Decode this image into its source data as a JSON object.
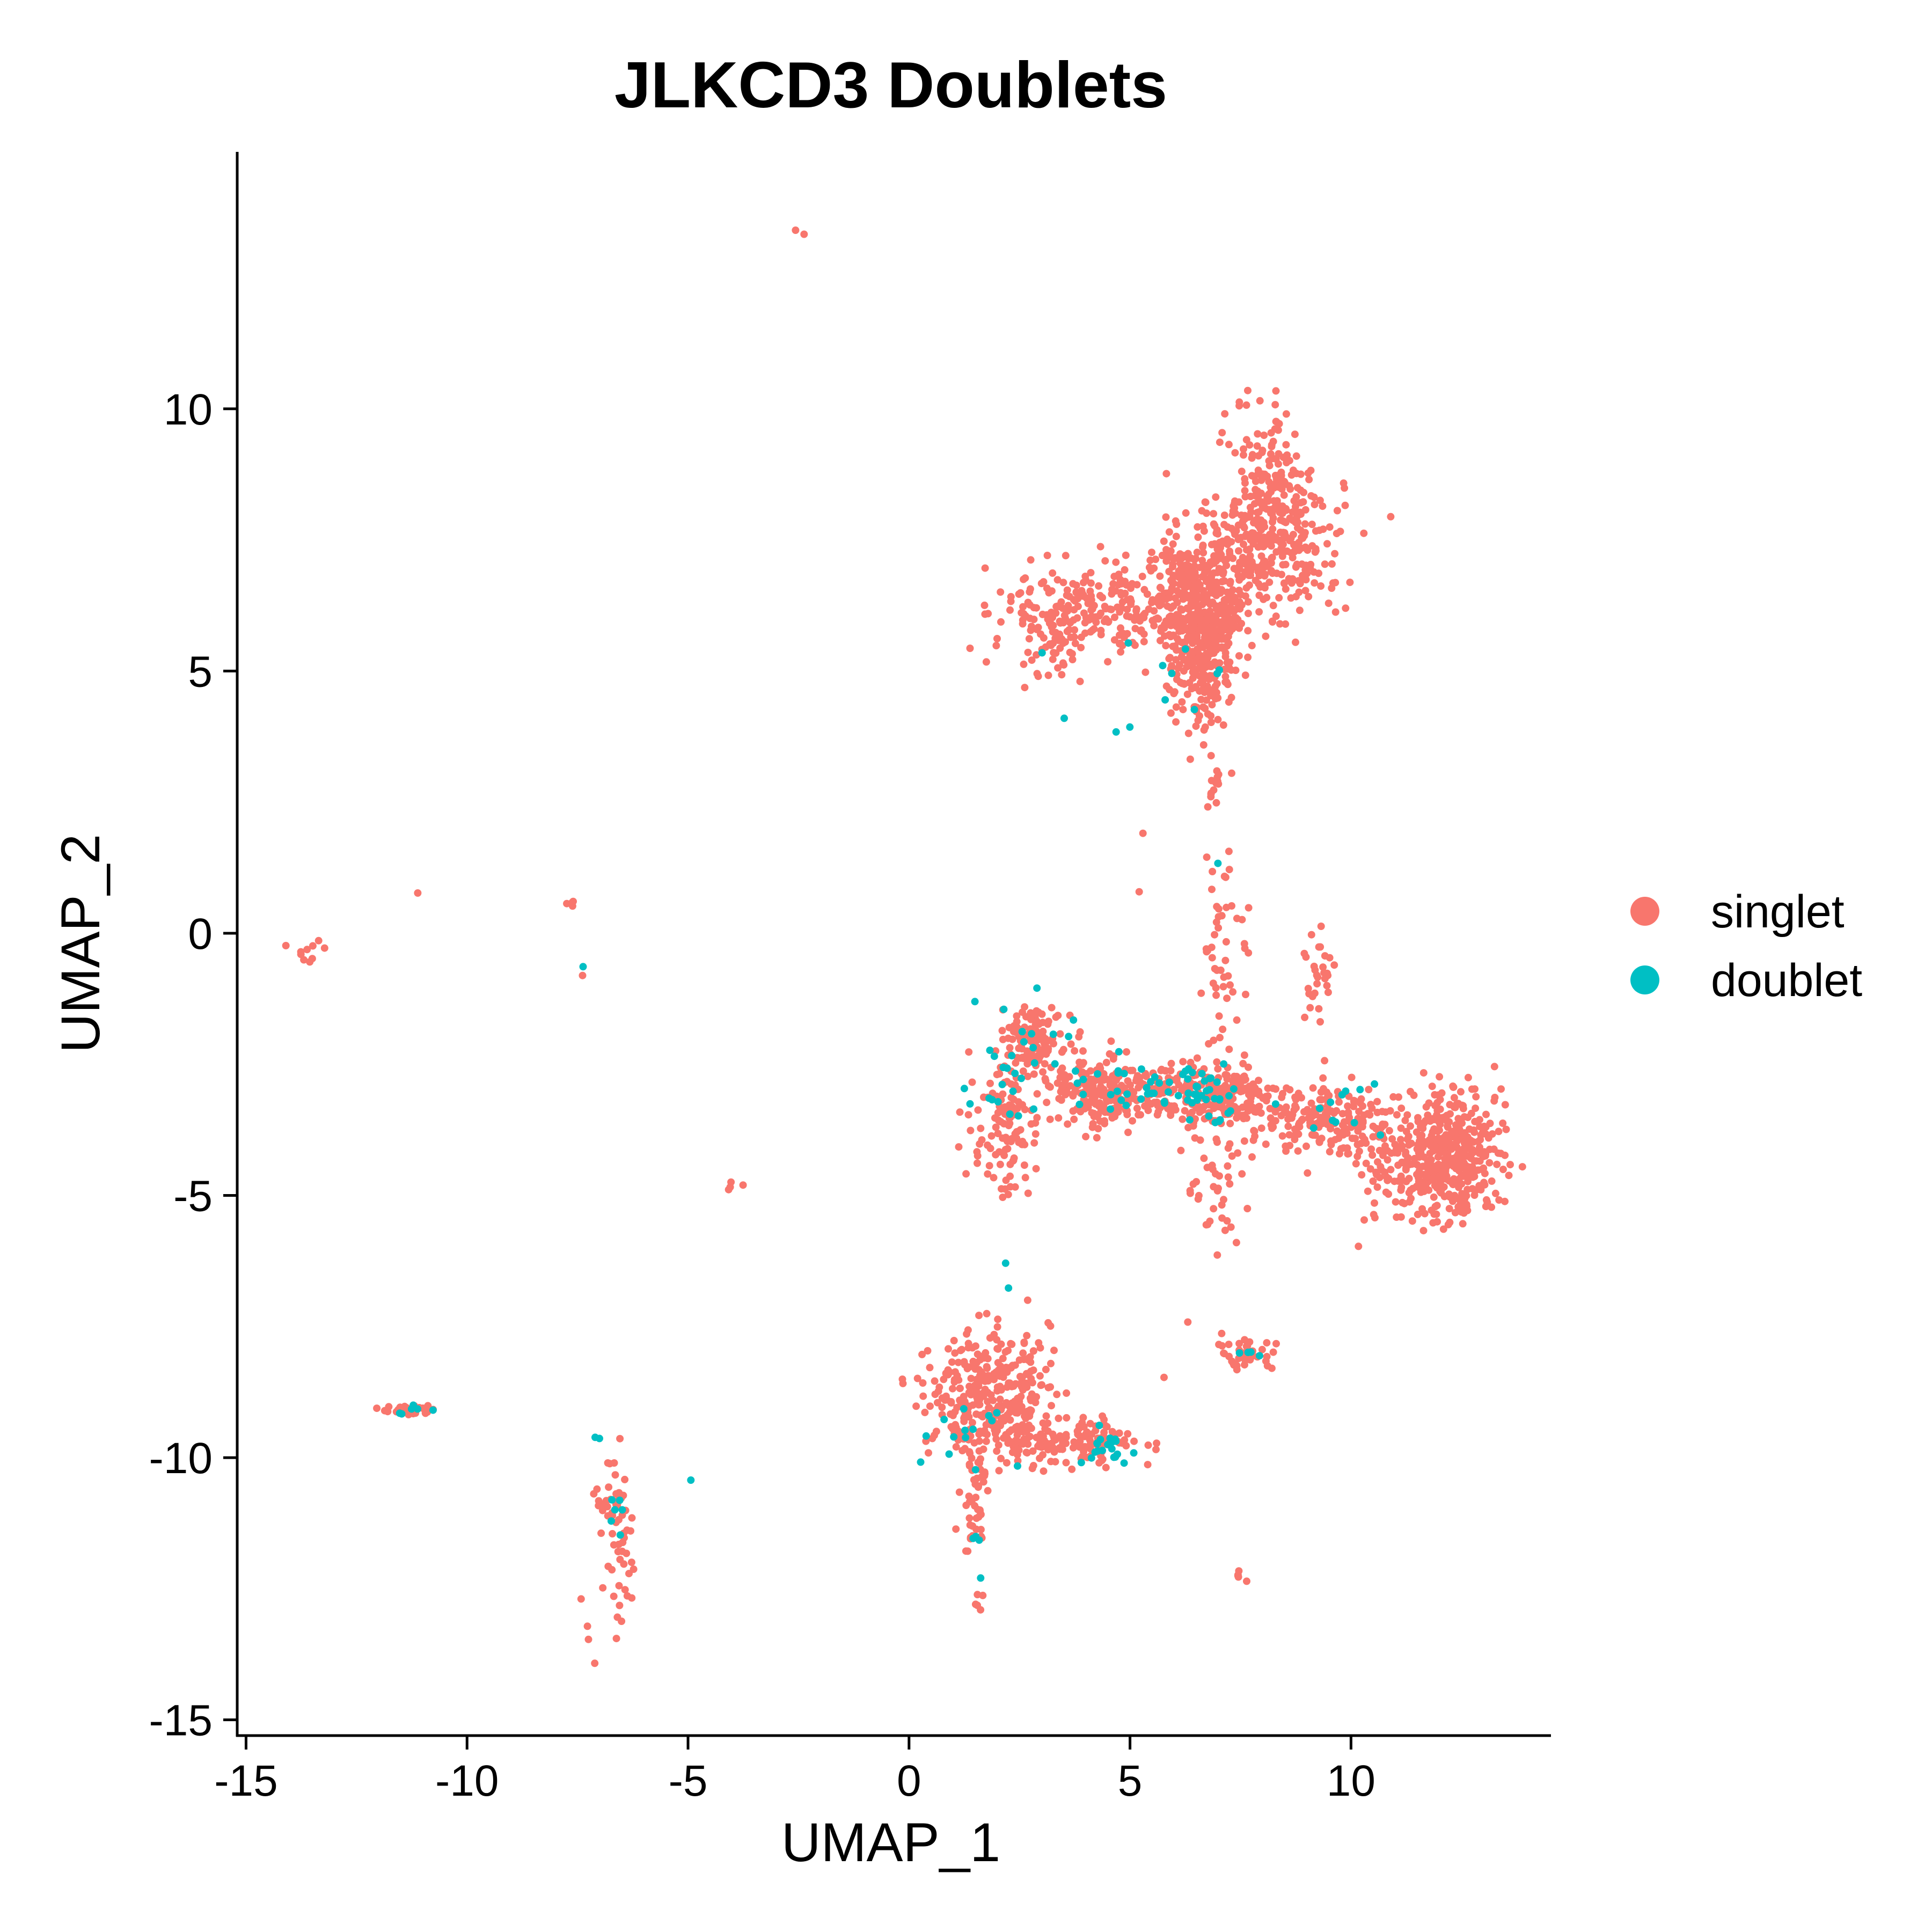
{
  "chart_data": {
    "type": "scatter",
    "title": "JLKCD3 Doublets",
    "xlabel": "UMAP_1",
    "ylabel": "UMAP_2",
    "xlim": [
      -15.2,
      14.5
    ],
    "ylim": [
      -15.3,
      14.9
    ],
    "xticks": [
      -15,
      -10,
      -5,
      0,
      5,
      10
    ],
    "xtick_labels": [
      "-15",
      "-10",
      "-5",
      "0",
      "5",
      "10"
    ],
    "yticks": [
      -15,
      -10,
      -5,
      0,
      5,
      10
    ],
    "ytick_labels": [
      "-15",
      "-10",
      "-5",
      "0",
      "5",
      "10"
    ],
    "grid": false,
    "legend_position": "right",
    "series": [
      {
        "name": "singlet",
        "color": "#F8766D",
        "clusters": [
          {
            "cx": 8.0,
            "cy": 7.4,
            "sx": 0.9,
            "sy": 0.7,
            "n": 380
          },
          {
            "cx": 8.3,
            "cy": 8.8,
            "sx": 0.45,
            "sy": 0.7,
            "n": 110
          },
          {
            "cx": 6.6,
            "cy": 6.2,
            "sx": 0.5,
            "sy": 0.6,
            "n": 320
          },
          {
            "cx": 6.7,
            "cy": 5.0,
            "sx": 0.35,
            "sy": 0.6,
            "n": 170
          },
          {
            "cx": 4.6,
            "cy": 6.2,
            "sx": 1.3,
            "sy": 0.45,
            "n": 260
          },
          {
            "cx": 3.3,
            "cy": 5.7,
            "sx": 0.4,
            "sy": 0.5,
            "n": 60
          },
          {
            "cx": 6.9,
            "cy": 2.7,
            "sx": 0.1,
            "sy": 0.25,
            "n": 12
          },
          {
            "cx": 7.1,
            "cy": -0.6,
            "sx": 0.3,
            "sy": 1.1,
            "n": 55
          },
          {
            "cx": 9.3,
            "cy": -0.9,
            "sx": 0.18,
            "sy": 0.5,
            "n": 30
          },
          {
            "cx": 2.8,
            "cy": -2.0,
            "sx": 0.35,
            "sy": 0.3,
            "n": 120
          },
          {
            "cx": 2.2,
            "cy": -3.8,
            "sx": 0.4,
            "sy": 0.6,
            "n": 110
          },
          {
            "cx": 4.2,
            "cy": -3.0,
            "sx": 0.6,
            "sy": 0.4,
            "n": 180
          },
          {
            "cx": 6.5,
            "cy": -3.1,
            "sx": 1.1,
            "sy": 0.3,
            "n": 260
          },
          {
            "cx": 9.5,
            "cy": -3.6,
            "sx": 1.0,
            "sy": 0.3,
            "n": 200
          },
          {
            "cx": 12.3,
            "cy": -4.2,
            "sx": 0.5,
            "sy": 0.6,
            "n": 420
          },
          {
            "cx": 11.0,
            "cy": -4.5,
            "sx": 0.5,
            "sy": 0.5,
            "n": 90
          },
          {
            "cx": 6.9,
            "cy": -4.6,
            "sx": 0.4,
            "sy": 0.6,
            "n": 40
          },
          {
            "cx": 1.8,
            "cy": -8.8,
            "sx": 0.7,
            "sy": 0.6,
            "n": 340
          },
          {
            "cx": 3.7,
            "cy": -9.7,
            "sx": 0.8,
            "sy": 0.2,
            "n": 140
          },
          {
            "cx": 1.5,
            "cy": -10.8,
            "sx": 0.15,
            "sy": 0.6,
            "n": 50
          },
          {
            "cx": 1.6,
            "cy": -12.8,
            "sx": 0.05,
            "sy": 0.2,
            "n": 5
          },
          {
            "cx": 7.6,
            "cy": -8.0,
            "sx": 0.4,
            "sy": 0.15,
            "n": 40
          },
          {
            "cx": 7.5,
            "cy": -12.2,
            "sx": 0.1,
            "sy": 0.1,
            "n": 5
          },
          {
            "cx": -11.2,
            "cy": -9.1,
            "sx": 0.3,
            "sy": 0.05,
            "n": 30
          },
          {
            "cx": -6.6,
            "cy": -11.2,
            "sx": 0.25,
            "sy": 0.6,
            "n": 60
          },
          {
            "cx": -7.3,
            "cy": -13.3,
            "sx": 0.15,
            "sy": 0.3,
            "n": 4
          },
          {
            "cx": -6.6,
            "cy": -13.0,
            "sx": 0.1,
            "sy": 0.5,
            "n": 4
          },
          {
            "cx": -13.6,
            "cy": -0.4,
            "sx": 0.2,
            "sy": 0.12,
            "n": 10
          },
          {
            "cx": -7.6,
            "cy": 0.6,
            "sx": 0.1,
            "sy": 0.25,
            "n": 4
          },
          {
            "cx": -3.9,
            "cy": -4.8,
            "sx": 0.1,
            "sy": 0.1,
            "n": 4
          },
          {
            "cx": -2.2,
            "cy": 13.4,
            "sx": 0.2,
            "sy": 0.05,
            "n": 2
          },
          {
            "cx": -11.1,
            "cy": 0.8,
            "sx": 0.02,
            "sy": 0.02,
            "n": 1
          },
          {
            "cx": -7.4,
            "cy": -0.8,
            "sx": 0.02,
            "sy": 0.02,
            "n": 1
          },
          {
            "cx": 5.3,
            "cy": 1.9,
            "sx": 0.02,
            "sy": 0.02,
            "n": 1
          },
          {
            "cx": 5.2,
            "cy": 0.8,
            "sx": 0.02,
            "sy": 0.02,
            "n": 1
          },
          {
            "cx": 6.3,
            "cy": -7.4,
            "sx": 0.02,
            "sy": 0.02,
            "n": 1
          },
          {
            "cx": 5.8,
            "cy": -8.5,
            "sx": 0.02,
            "sy": 0.02,
            "n": 1
          }
        ]
      },
      {
        "name": "doublet",
        "color": "#00BFC4",
        "clusters": [
          {
            "cx": 2.4,
            "cy": -2.4,
            "sx": 0.6,
            "sy": 0.6,
            "n": 30
          },
          {
            "cx": 5.0,
            "cy": -2.9,
            "sx": 0.9,
            "sy": 0.25,
            "n": 35
          },
          {
            "cx": 6.7,
            "cy": -3.0,
            "sx": 0.4,
            "sy": 0.3,
            "n": 30
          },
          {
            "cx": 9.6,
            "cy": -3.4,
            "sx": 0.8,
            "sy": 0.3,
            "n": 12
          },
          {
            "cx": 4.6,
            "cy": -9.8,
            "sx": 0.4,
            "sy": 0.15,
            "n": 22
          },
          {
            "cx": 1.4,
            "cy": -9.6,
            "sx": 0.5,
            "sy": 0.4,
            "n": 14
          },
          {
            "cx": 5.8,
            "cy": 5.2,
            "sx": 0.9,
            "sy": 0.5,
            "n": 10
          },
          {
            "cx": 7.6,
            "cy": -8.0,
            "sx": 0.25,
            "sy": 0.05,
            "n": 4
          },
          {
            "cx": -11.3,
            "cy": -9.1,
            "sx": 0.2,
            "sy": 0.05,
            "n": 6
          },
          {
            "cx": -6.6,
            "cy": -11.0,
            "sx": 0.12,
            "sy": 0.3,
            "n": 6
          },
          {
            "cx": 1.5,
            "cy": -11.5,
            "sx": 0.05,
            "sy": 0.1,
            "n": 3
          },
          {
            "cx": -7.4,
            "cy": -0.65,
            "sx": 0.02,
            "sy": 0.02,
            "n": 1
          },
          {
            "cx": -7.1,
            "cy": -9.6,
            "sx": 0.2,
            "sy": 0.05,
            "n": 2
          },
          {
            "cx": -4.9,
            "cy": -10.4,
            "sx": 0.02,
            "sy": 0.02,
            "n": 1
          },
          {
            "cx": 2.2,
            "cy": -6.4,
            "sx": 0.02,
            "sy": 0.4,
            "n": 2
          },
          {
            "cx": 1.6,
            "cy": -12.3,
            "sx": 0.02,
            "sy": 0.02,
            "n": 1
          },
          {
            "cx": 7.0,
            "cy": 1.3,
            "sx": 0.02,
            "sy": 0.02,
            "n": 1
          },
          {
            "cx": 3.5,
            "cy": 4.1,
            "sx": 0.02,
            "sy": 0.02,
            "n": 1
          },
          {
            "cx": 3.0,
            "cy": 5.3,
            "sx": 0.02,
            "sy": 0.02,
            "n": 1
          }
        ]
      }
    ]
  }
}
